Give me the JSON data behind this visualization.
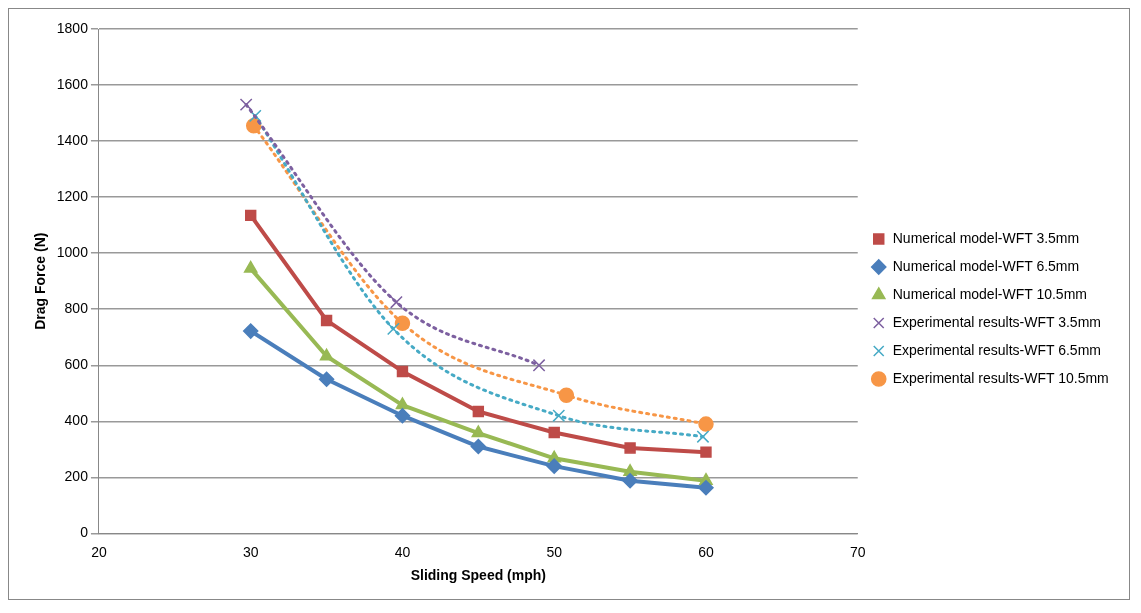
{
  "chart_data": {
    "type": "line",
    "xlabel": "Sliding Speed (mph)",
    "ylabel": "Drag Force (N)",
    "xlim": [
      20,
      70
    ],
    "xticks": [
      20,
      30,
      40,
      50,
      60,
      70
    ],
    "ylim": [
      0,
      1800
    ],
    "yticks": [
      0,
      200,
      400,
      600,
      800,
      1000,
      1200,
      1400,
      1600,
      1800
    ],
    "grid": "y",
    "legend": "right",
    "series": [
      {
        "name": "Numerical model-WFT 3.5mm",
        "color": "#be4b48",
        "marker": "square",
        "line_style": "solid",
        "x": [
          30,
          35,
          40,
          45,
          50,
          55,
          60
        ],
        "values": [
          1135,
          760,
          578,
          435,
          360,
          305,
          290
        ]
      },
      {
        "name": "Numerical model-WFT 6.5mm",
        "color": "#4a7ebb",
        "marker": "diamond",
        "line_style": "solid",
        "x": [
          30,
          35,
          40,
          45,
          50,
          55,
          60
        ],
        "values": [
          722,
          550,
          420,
          310,
          240,
          188,
          163
        ]
      },
      {
        "name": "Numerical model-WFT 10.5mm",
        "color": "#98b954",
        "marker": "triangle",
        "line_style": "solid",
        "x": [
          30,
          35,
          40,
          45,
          50,
          55,
          60
        ],
        "values": [
          945,
          632,
          458,
          358,
          268,
          220,
          188
        ]
      },
      {
        "name": "Experimental results-WFT 3.5mm",
        "color": "#7d60a0",
        "marker": "cross",
        "line_style": "dotted",
        "x": [
          29.7,
          39.6,
          49
        ],
        "values": [
          1530,
          825,
          600
        ]
      },
      {
        "name": "Experimental results-WFT 6.5mm",
        "color": "#46aac5",
        "marker": "cross",
        "line_style": "dotted",
        "x": [
          30.3,
          39.4,
          50.3,
          59.8
        ],
        "values": [
          1490,
          730,
          420,
          345
        ]
      },
      {
        "name": "Experimental results-WFT 10.5mm",
        "color": "#f79646",
        "marker": "circle",
        "line_style": "dotted",
        "x": [
          30.2,
          40,
          50.8,
          60
        ],
        "values": [
          1455,
          750,
          493,
          390
        ]
      }
    ]
  }
}
